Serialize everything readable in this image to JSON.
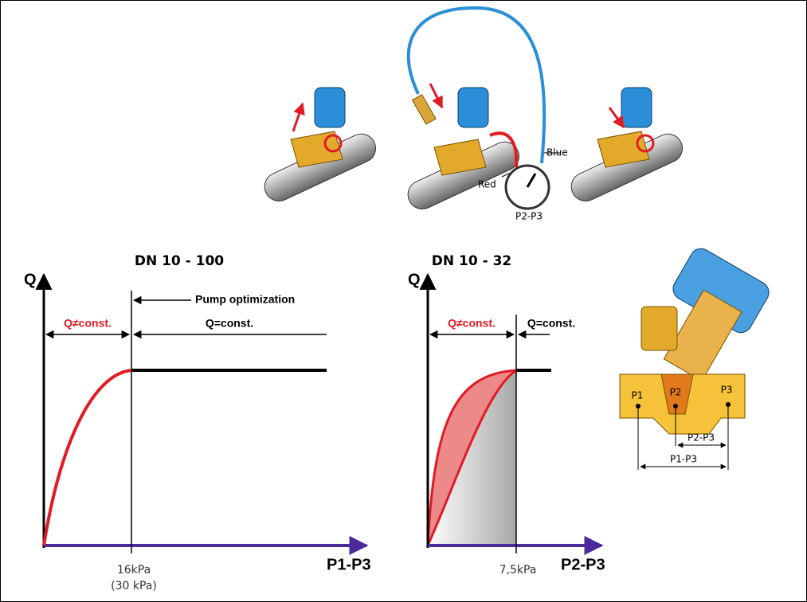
{
  "top_illustration": {
    "hose_blue": "Blue",
    "hose_red": "Red",
    "gauge": "P2-P3"
  },
  "left_chart": {
    "title": "DN 10 - 100",
    "y_axis": "Q",
    "x_axis": "P1-P3",
    "annotation": "Pump optimization",
    "region_left": "Q≠const.",
    "region_right": "Q=const.",
    "tick": "16kPa",
    "tick_note": "(30 kPa)"
  },
  "right_chart": {
    "title": "DN 10 - 32",
    "y_axis": "Q",
    "x_axis": "P2-P3",
    "region_left": "Q≠const.",
    "region_right": "Q=const.",
    "tick": "7,5kPa"
  },
  "valve_section": {
    "ports": [
      "P1",
      "P2",
      "P3"
    ],
    "dimensions": [
      "P2-P3",
      "P1-P3"
    ]
  }
}
